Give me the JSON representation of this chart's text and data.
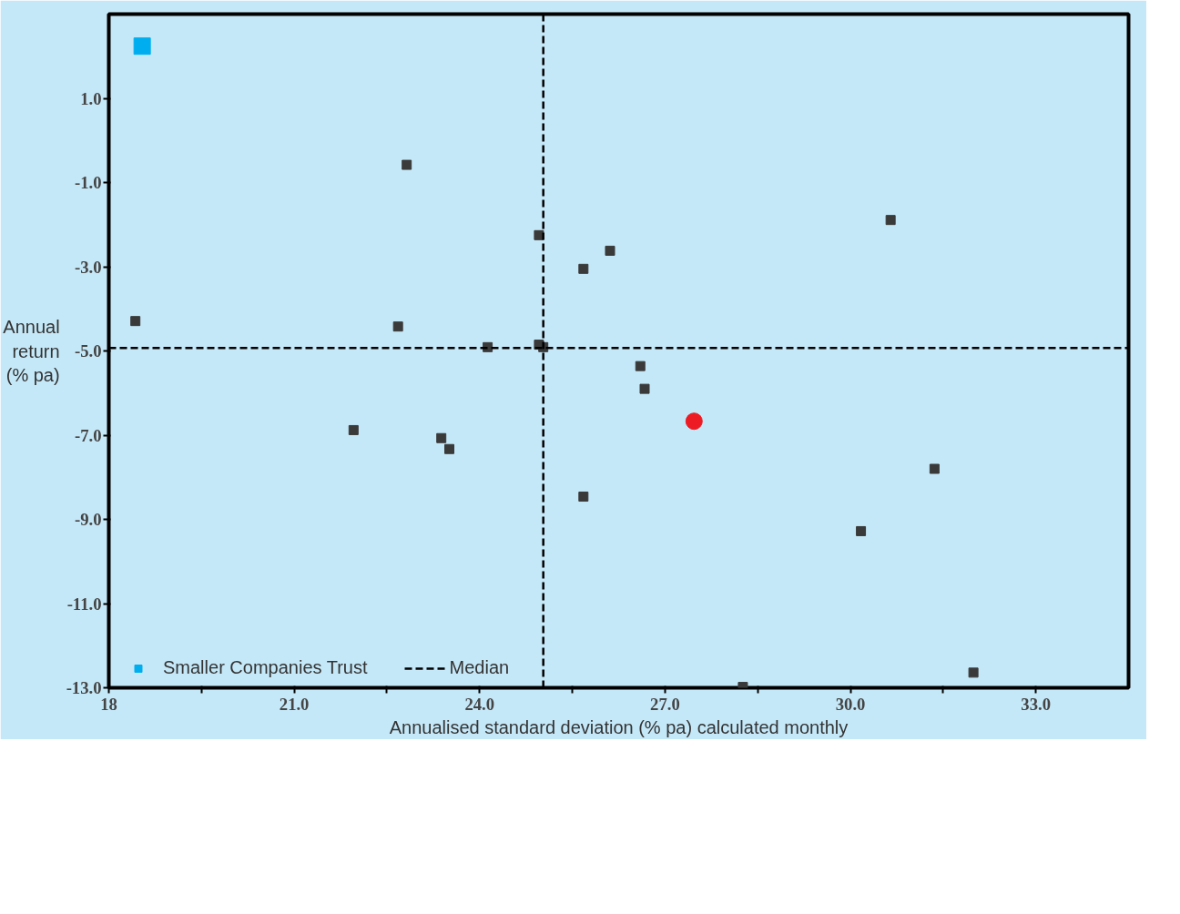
{
  "chart_data": {
    "type": "scatter",
    "xlabel": "Annualised standard deviation (% pa) calculated monthly",
    "ylabel": "Annual return (% pa)",
    "series": [
      {
        "name": "Smaller Companies Trust",
        "color": "#00aeef",
        "marker": "square",
        "x": [
          18.54
        ],
        "values": [
          2.24
        ]
      },
      {
        "color": "#ed1c24",
        "marker": "circle",
        "x": [
          27.47
        ],
        "values": [
          -6.67
        ]
      },
      {
        "color": "#3a3a3a",
        "marker": "square",
        "x": [
          22.82,
          18.43,
          22.68,
          24.96,
          26.11,
          25.68,
          30.65,
          24.13,
          24.96,
          25.03,
          26.6,
          26.67,
          21.96,
          23.38,
          23.51,
          25.68,
          31.36,
          30.17,
          31.99,
          28.26
        ],
        "values": [
          -0.58,
          -4.29,
          -4.42,
          -2.25,
          -2.62,
          -3.05,
          -1.89,
          -4.91,
          -4.85,
          -4.91,
          -5.36,
          -5.9,
          -6.88,
          -7.07,
          -7.33,
          -8.46,
          -7.8,
          -9.28,
          -12.64,
          -12.98
        ]
      }
    ],
    "xlim": [
      18.0,
      34.5
    ],
    "xticks": [
      18.0,
      {
        "value": 19.5,
        "label": null
      },
      {
        "value": 21.0,
        "label": "21.0"
      },
      {
        "value": 22.5,
        "label": null
      },
      {
        "value": 24.0,
        "label": "24.0"
      },
      {
        "value": 25.5,
        "label": null
      },
      {
        "value": 27.0,
        "label": "27.0"
      },
      {
        "value": 28.5,
        "label": null
      },
      {
        "value": 30.0,
        "label": "30.0"
      },
      {
        "value": 31.5,
        "label": null
      },
      {
        "value": 33.0,
        "label": "33.0"
      }
    ],
    "ylim": [
      -13.0,
      3.0
    ],
    "yticks": [
      {
        "value": 1.0,
        "label": "1.0"
      },
      {
        "value": -1.0,
        "label": "-1.0"
      },
      {
        "value": -3.0,
        "label": "-3.0"
      },
      {
        "value": -5.0,
        "label": "-5.0"
      },
      {
        "value": -7.0,
        "label": "-7.0"
      },
      {
        "value": -9.0,
        "label": "-9.0"
      },
      {
        "value": -11.0,
        "label": "-11.0"
      },
      {
        "value": -13.0,
        "label": "-13.0"
      }
    ],
    "ref_lines": [
      {
        "axis": "x",
        "value": 25.03,
        "label": "Median",
        "line_style": "dashed",
        "color": "#000000"
      },
      {
        "axis": "y",
        "value": -4.93,
        "line_style": "dashed",
        "color": "#000000"
      }
    ],
    "grid": false,
    "legend": "bottom left"
  }
}
